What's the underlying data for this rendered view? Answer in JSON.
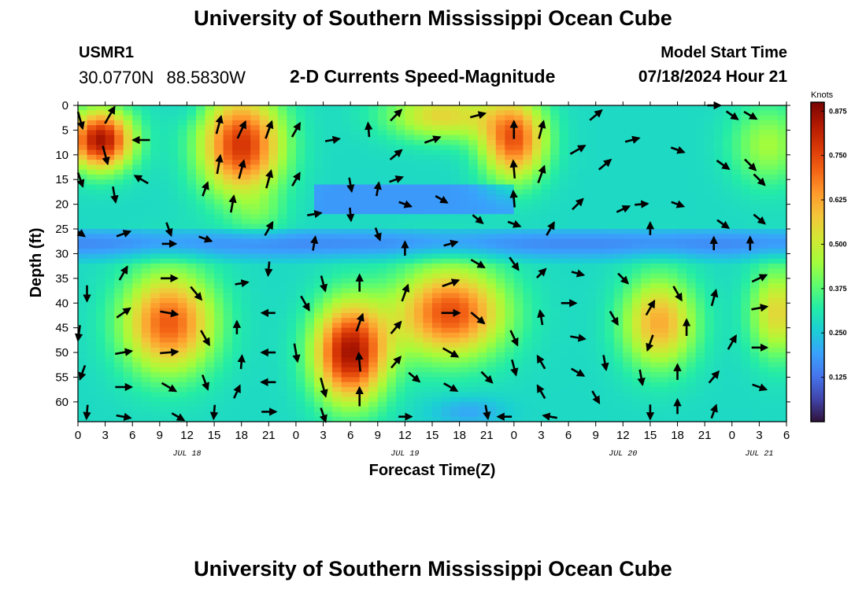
{
  "header": {
    "title": "University of Southern Mississippi Ocean Cube",
    "station_id": "USMR1",
    "latitude": "30.0770N",
    "longitude": "88.5830W",
    "subtitle": "2-D Currents Speed-Magnitude",
    "model_start_label": "Model Start Time",
    "model_start_value": "07/18/2024 Hour 21"
  },
  "footer": {
    "title": "University of Southern Mississippi Ocean Cube"
  },
  "colors": {
    "colormap": [
      "#30123b",
      "#4145ab",
      "#4675ed",
      "#39a2fc",
      "#1bcfd4",
      "#24eca6",
      "#61fc6c",
      "#a4fc3b",
      "#d1e834",
      "#f3c63a",
      "#fe9b2d",
      "#f36315",
      "#d93806",
      "#b11901",
      "#7a0402"
    ],
    "arrow": "#000000",
    "axis": "#000000"
  },
  "chart_data": {
    "type": "heatmap",
    "title": "2-D Currents Speed-Magnitude",
    "xlabel": "Forecast Time(Z)",
    "ylabel": "Depth (ft)",
    "x_ticks": [
      "0",
      "3",
      "6",
      "9",
      "12",
      "15",
      "18",
      "21",
      "0",
      "3",
      "6",
      "9",
      "12",
      "15",
      "18",
      "21",
      "0",
      "3",
      "6",
      "9",
      "12",
      "15",
      "18",
      "21",
      "0",
      "3",
      "6"
    ],
    "x_range_hours": [
      0,
      78
    ],
    "date_labels": [
      {
        "label": "JUL 18",
        "hour": 12
      },
      {
        "label": "JUL 19",
        "hour": 36
      },
      {
        "label": "JUL 20",
        "hour": 60
      },
      {
        "label": "JUL 21",
        "hour": 75
      }
    ],
    "y_ticks": [
      "0",
      "5",
      "10",
      "15",
      "20",
      "25",
      "30",
      "35",
      "40",
      "45",
      "50",
      "55",
      "60"
    ],
    "y_range_ft": [
      0,
      64
    ],
    "colorbar": {
      "title": "Knots",
      "range": [
        0.0,
        0.9
      ],
      "ticks": [
        "0.125",
        "0.250",
        "0.375",
        "0.500",
        "0.625",
        "0.750",
        "0.875"
      ]
    },
    "speed_blobs": [
      {
        "t": 2.5,
        "d": 7,
        "st": 3.5,
        "sd": 6,
        "a": 0.85
      },
      {
        "t": 18,
        "d": 8,
        "st": 4.5,
        "sd": 10,
        "a": 0.78
      },
      {
        "t": 20,
        "d": 22,
        "st": 3,
        "sd": 4,
        "a": 0.35
      },
      {
        "t": 12.5,
        "d": 1,
        "st": 2,
        "sd": 3,
        "a": 0.25
      },
      {
        "t": 40,
        "d": 2,
        "st": 6,
        "sd": 5,
        "a": 0.55
      },
      {
        "t": 48,
        "d": 7,
        "st": 3.5,
        "sd": 8,
        "a": 0.72
      },
      {
        "t": 76,
        "d": 8,
        "st": 4,
        "sd": 8,
        "a": 0.45
      },
      {
        "t": 10,
        "d": 44,
        "st": 5,
        "sd": 10,
        "a": 0.72
      },
      {
        "t": 30,
        "d": 50,
        "st": 4,
        "sd": 10,
        "a": 0.85
      },
      {
        "t": 41,
        "d": 42,
        "st": 6,
        "sd": 9,
        "a": 0.74
      },
      {
        "t": 64,
        "d": 44,
        "st": 4,
        "sd": 9,
        "a": 0.62
      },
      {
        "t": 77,
        "d": 42,
        "st": 3,
        "sd": 9,
        "a": 0.55
      },
      {
        "t": 43,
        "d": 62,
        "st": 4,
        "sd": 3,
        "a": 0.2
      }
    ],
    "arrows": [
      {
        "t": 0,
        "d": 3,
        "angle": -60,
        "speed": 0.85
      },
      {
        "t": 0,
        "d": 15,
        "angle": -55,
        "speed": 0.6
      },
      {
        "t": 0,
        "d": 26,
        "angle": -20,
        "speed": 0.3
      },
      {
        "t": 1,
        "d": 38,
        "angle": -90,
        "speed": 0.5
      },
      {
        "t": 0,
        "d": 46,
        "angle": -105,
        "speed": 0.5
      },
      {
        "t": 0.5,
        "d": 54,
        "angle": -110,
        "speed": 0.4
      },
      {
        "t": 1,
        "d": 62,
        "angle": -95,
        "speed": 0.3
      },
      {
        "t": 3.5,
        "d": 2,
        "angle": 60,
        "speed": 0.85
      },
      {
        "t": 3,
        "d": 10,
        "angle": -75,
        "speed": 0.8
      },
      {
        "t": 4,
        "d": 18,
        "angle": -80,
        "speed": 0.5
      },
      {
        "t": 5,
        "d": 26,
        "angle": 20,
        "speed": 0.35
      },
      {
        "t": 5,
        "d": 34,
        "angle": 60,
        "speed": 0.45
      },
      {
        "t": 5,
        "d": 42,
        "angle": 35,
        "speed": 0.55
      },
      {
        "t": 5,
        "d": 50,
        "angle": 10,
        "speed": 0.6
      },
      {
        "t": 5,
        "d": 57,
        "angle": 0,
        "speed": 0.55
      },
      {
        "t": 5,
        "d": 63,
        "angle": -10,
        "speed": 0.35
      },
      {
        "t": 7,
        "d": 7,
        "angle": 180,
        "speed": 0.6
      },
      {
        "t": 7,
        "d": 15,
        "angle": 150,
        "speed": 0.45
      },
      {
        "t": 10,
        "d": 25,
        "angle": -70,
        "speed": 0.3
      },
      {
        "t": 10,
        "d": 28,
        "angle": 0,
        "speed": 0.3
      },
      {
        "t": 10,
        "d": 35,
        "angle": 0,
        "speed": 0.55
      },
      {
        "t": 10,
        "d": 42,
        "angle": -10,
        "speed": 0.7
      },
      {
        "t": 10,
        "d": 50,
        "angle": 5,
        "speed": 0.7
      },
      {
        "t": 10,
        "d": 57,
        "angle": -30,
        "speed": 0.55
      },
      {
        "t": 11,
        "d": 63,
        "angle": -30,
        "speed": 0.3
      },
      {
        "t": 14,
        "d": 17,
        "angle": 70,
        "speed": 0.35
      },
      {
        "t": 14,
        "d": 27,
        "angle": -20,
        "speed": 0.25
      },
      {
        "t": 13,
        "d": 38,
        "angle": -50,
        "speed": 0.6
      },
      {
        "t": 14,
        "d": 47,
        "angle": -60,
        "speed": 0.6
      },
      {
        "t": 14,
        "d": 56,
        "angle": -70,
        "speed": 0.45
      },
      {
        "t": 15,
        "d": 62,
        "angle": -95,
        "speed": 0.3
      },
      {
        "t": 15.5,
        "d": 4,
        "angle": 75,
        "speed": 0.75
      },
      {
        "t": 15.5,
        "d": 12,
        "angle": 80,
        "speed": 0.8
      },
      {
        "t": 18,
        "d": 5,
        "angle": 65,
        "speed": 0.8
      },
      {
        "t": 18,
        "d": 13,
        "angle": 75,
        "speed": 0.8
      },
      {
        "t": 17,
        "d": 20,
        "angle": 80,
        "speed": 0.6
      },
      {
        "t": 18,
        "d": 36,
        "angle": 10,
        "speed": 0.2
      },
      {
        "t": 17.5,
        "d": 45,
        "angle": 90,
        "speed": 0.2
      },
      {
        "t": 18,
        "d": 52,
        "angle": 85,
        "speed": 0.25
      },
      {
        "t": 17.5,
        "d": 58,
        "angle": 65,
        "speed": 0.3
      },
      {
        "t": 21,
        "d": 5,
        "angle": 70,
        "speed": 0.75
      },
      {
        "t": 21,
        "d": 15,
        "angle": 75,
        "speed": 0.75
      },
      {
        "t": 21,
        "d": 25,
        "angle": 60,
        "speed": 0.45
      },
      {
        "t": 21,
        "d": 33,
        "angle": -95,
        "speed": 0.3
      },
      {
        "t": 21,
        "d": 42,
        "angle": 180,
        "speed": 0.25
      },
      {
        "t": 21,
        "d": 50,
        "angle": 180,
        "speed": 0.3
      },
      {
        "t": 21,
        "d": 56,
        "angle": 180,
        "speed": 0.35
      },
      {
        "t": 21,
        "d": 62,
        "angle": 0,
        "speed": 0.35
      },
      {
        "t": 24,
        "d": 5,
        "angle": 60,
        "speed": 0.5
      },
      {
        "t": 24,
        "d": 15,
        "angle": 60,
        "speed": 0.4
      },
      {
        "t": 26,
        "d": 22,
        "angle": 10,
        "speed": 0.3
      },
      {
        "t": 26,
        "d": 28,
        "angle": 80,
        "speed": 0.3
      },
      {
        "t": 27,
        "d": 36,
        "angle": -75,
        "speed": 0.5
      },
      {
        "t": 25,
        "d": 40,
        "angle": -60,
        "speed": 0.55
      },
      {
        "t": 24,
        "d": 50,
        "angle": -80,
        "speed": 0.75
      },
      {
        "t": 27,
        "d": 57,
        "angle": -75,
        "speed": 0.85
      },
      {
        "t": 27,
        "d": 63,
        "angle": -75,
        "speed": 0.75
      },
      {
        "t": 28,
        "d": 7,
        "angle": 10,
        "speed": 0.35
      },
      {
        "t": 30,
        "d": 16,
        "angle": -80,
        "speed": 0.3
      },
      {
        "t": 30,
        "d": 22,
        "angle": -85,
        "speed": 0.2
      },
      {
        "t": 32,
        "d": 5,
        "angle": 95,
        "speed": 0.3
      },
      {
        "t": 33,
        "d": 17,
        "angle": 80,
        "speed": 0.25
      },
      {
        "t": 33,
        "d": 26,
        "angle": -70,
        "speed": 0.2
      },
      {
        "t": 31,
        "d": 36,
        "angle": 90,
        "speed": 0.6
      },
      {
        "t": 31,
        "d": 44,
        "angle": 70,
        "speed": 0.75
      },
      {
        "t": 31,
        "d": 52,
        "angle": 95,
        "speed": 0.8
      },
      {
        "t": 31,
        "d": 59,
        "angle": 90,
        "speed": 0.8
      },
      {
        "t": 35,
        "d": 2,
        "angle": 45,
        "speed": 0.45
      },
      {
        "t": 35,
        "d": 10,
        "angle": 40,
        "speed": 0.4
      },
      {
        "t": 35,
        "d": 15,
        "angle": 20,
        "speed": 0.3
      },
      {
        "t": 36,
        "d": 20,
        "angle": -20,
        "speed": 0.2
      },
      {
        "t": 36,
        "d": 29,
        "angle": 90,
        "speed": 0.3
      },
      {
        "t": 36,
        "d": 38,
        "angle": 70,
        "speed": 0.65
      },
      {
        "t": 35,
        "d": 45,
        "angle": 50,
        "speed": 0.45
      },
      {
        "t": 35,
        "d": 52,
        "angle": 50,
        "speed": 0.35
      },
      {
        "t": 37,
        "d": 55,
        "angle": -40,
        "speed": 0.3
      },
      {
        "t": 36,
        "d": 63,
        "angle": 0,
        "speed": 0.2
      },
      {
        "t": 39,
        "d": 7,
        "angle": 20,
        "speed": 0.55
      },
      {
        "t": 40,
        "d": 19,
        "angle": -30,
        "speed": 0.25
      },
      {
        "t": 41,
        "d": 28,
        "angle": 15,
        "speed": 0.3
      },
      {
        "t": 41,
        "d": 36,
        "angle": 20,
        "speed": 0.65
      },
      {
        "t": 41,
        "d": 42,
        "angle": 0,
        "speed": 0.75
      },
      {
        "t": 41,
        "d": 50,
        "angle": -30,
        "speed": 0.65
      },
      {
        "t": 41,
        "d": 57,
        "angle": -30,
        "speed": 0.45
      },
      {
        "t": 44,
        "d": 2,
        "angle": 15,
        "speed": 0.45
      },
      {
        "t": 44,
        "d": 23,
        "angle": -40,
        "speed": 0.2
      },
      {
        "t": 44,
        "d": 32,
        "angle": -30,
        "speed": 0.45
      },
      {
        "t": 44,
        "d": 43,
        "angle": -40,
        "speed": 0.65
      },
      {
        "t": 45,
        "d": 55,
        "angle": -45,
        "speed": 0.45
      },
      {
        "t": 45,
        "d": 62,
        "angle": -80,
        "speed": 0.3
      },
      {
        "t": 48,
        "d": 24,
        "angle": -20,
        "speed": 0.2
      },
      {
        "t": 48,
        "d": 32,
        "angle": -55,
        "speed": 0.45
      },
      {
        "t": 48,
        "d": 47,
        "angle": -65,
        "speed": 0.55
      },
      {
        "t": 48,
        "d": 53,
        "angle": -75,
        "speed": 0.5
      },
      {
        "t": 47,
        "d": 63,
        "angle": 180,
        "speed": 0.3
      },
      {
        "t": 48,
        "d": 5,
        "angle": 90,
        "speed": 0.7
      },
      {
        "t": 48,
        "d": 13,
        "angle": 95,
        "speed": 0.7
      },
      {
        "t": 48,
        "d": 19,
        "angle": 95,
        "speed": 0.55
      },
      {
        "t": 51,
        "d": 5,
        "angle": 75,
        "speed": 0.75
      },
      {
        "t": 51,
        "d": 14,
        "angle": 70,
        "speed": 0.7
      },
      {
        "t": 52,
        "d": 25,
        "angle": 60,
        "speed": 0.4
      },
      {
        "t": 51,
        "d": 34,
        "angle": 45,
        "speed": 0.15
      },
      {
        "t": 51,
        "d": 43,
        "angle": 100,
        "speed": 0.35
      },
      {
        "t": 51,
        "d": 52,
        "angle": 120,
        "speed": 0.4
      },
      {
        "t": 51,
        "d": 58,
        "angle": 120,
        "speed": 0.4
      },
      {
        "t": 52,
        "d": 63,
        "angle": 170,
        "speed": 0.3
      },
      {
        "t": 55,
        "d": 9,
        "angle": 30,
        "speed": 0.6
      },
      {
        "t": 55,
        "d": 20,
        "angle": 45,
        "speed": 0.4
      },
      {
        "t": 55,
        "d": 34,
        "angle": -15,
        "speed": 0.15
      },
      {
        "t": 54,
        "d": 40,
        "angle": 0,
        "speed": 0.4
      },
      {
        "t": 55,
        "d": 47,
        "angle": -10,
        "speed": 0.4
      },
      {
        "t": 55,
        "d": 54,
        "angle": -30,
        "speed": 0.35
      },
      {
        "t": 57,
        "d": 2,
        "angle": 40,
        "speed": 0.45
      },
      {
        "t": 58,
        "d": 12,
        "angle": 40,
        "speed": 0.45
      },
      {
        "t": 60,
        "d": 21,
        "angle": 25,
        "speed": 0.3
      },
      {
        "t": 60,
        "d": 35,
        "angle": -45,
        "speed": 0.3
      },
      {
        "t": 59,
        "d": 43,
        "angle": -60,
        "speed": 0.45
      },
      {
        "t": 58,
        "d": 52,
        "angle": -80,
        "speed": 0.4
      },
      {
        "t": 57,
        "d": 59,
        "angle": -60,
        "speed": 0.3
      },
      {
        "t": 61,
        "d": 7,
        "angle": 15,
        "speed": 0.35
      },
      {
        "t": 62,
        "d": 20,
        "angle": 5,
        "speed": 0.2
      },
      {
        "t": 63,
        "d": 25,
        "angle": 90,
        "speed": 0.15
      },
      {
        "t": 63,
        "d": 41,
        "angle": 60,
        "speed": 0.55
      },
      {
        "t": 63,
        "d": 48,
        "angle": -110,
        "speed": 0.55
      },
      {
        "t": 62,
        "d": 55,
        "angle": -80,
        "speed": 0.45
      },
      {
        "t": 63,
        "d": 62,
        "angle": -90,
        "speed": 0.35
      },
      {
        "t": 66,
        "d": 9,
        "angle": -20,
        "speed": 0.3
      },
      {
        "t": 66,
        "d": 20,
        "angle": -20,
        "speed": 0.2
      },
      {
        "t": 66,
        "d": 38,
        "angle": -60,
        "speed": 0.55
      },
      {
        "t": 67,
        "d": 45,
        "angle": 90,
        "speed": 0.55
      },
      {
        "t": 66,
        "d": 54,
        "angle": 90,
        "speed": 0.45
      },
      {
        "t": 66,
        "d": 61,
        "angle": 90,
        "speed": 0.35
      },
      {
        "t": 70,
        "d": 0,
        "angle": 0,
        "speed": 0.2
      },
      {
        "t": 72,
        "d": 2,
        "angle": -35,
        "speed": 0.3
      },
      {
        "t": 71,
        "d": 12,
        "angle": -35,
        "speed": 0.4
      },
      {
        "t": 71,
        "d": 24,
        "angle": -35,
        "speed": 0.3
      },
      {
        "t": 70,
        "d": 28,
        "angle": 90,
        "speed": 0.2
      },
      {
        "t": 70,
        "d": 39,
        "angle": 75,
        "speed": 0.55
      },
      {
        "t": 72,
        "d": 48,
        "angle": 60,
        "speed": 0.5
      },
      {
        "t": 70,
        "d": 55,
        "angle": 50,
        "speed": 0.4
      },
      {
        "t": 70,
        "d": 62,
        "angle": 70,
        "speed": 0.3
      },
      {
        "t": 74,
        "d": 2,
        "angle": -30,
        "speed": 0.35
      },
      {
        "t": 74,
        "d": 12,
        "angle": -45,
        "speed": 0.45
      },
      {
        "t": 75,
        "d": 15,
        "angle": -45,
        "speed": 0.45
      },
      {
        "t": 74,
        "d": 28,
        "angle": 90,
        "speed": 0.25
      },
      {
        "t": 75,
        "d": 23,
        "angle": -40,
        "speed": 0.35
      },
      {
        "t": 75,
        "d": 35,
        "angle": 25,
        "speed": 0.5
      },
      {
        "t": 75,
        "d": 41,
        "angle": 10,
        "speed": 0.5
      },
      {
        "t": 75,
        "d": 49,
        "angle": 0,
        "speed": 0.45
      },
      {
        "t": 75,
        "d": 57,
        "angle": -20,
        "speed": 0.4
      }
    ]
  }
}
